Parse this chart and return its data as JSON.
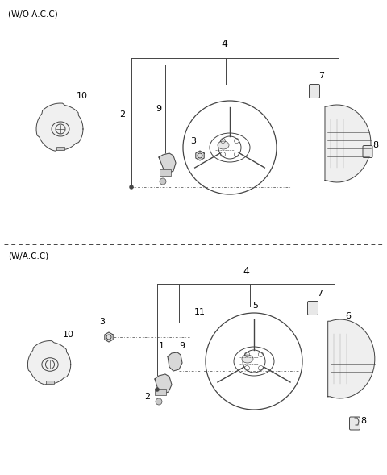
{
  "background_color": "#ffffff",
  "section1_label": "(W/O A.C.C)",
  "section2_label": "(W/A.C.C)",
  "line_color": "#444444",
  "text_color": "#000000",
  "fig_width": 4.8,
  "fig_height": 5.89,
  "dpi": 100,
  "part_fill": "#f5f5f5",
  "part_edge": "#444444"
}
